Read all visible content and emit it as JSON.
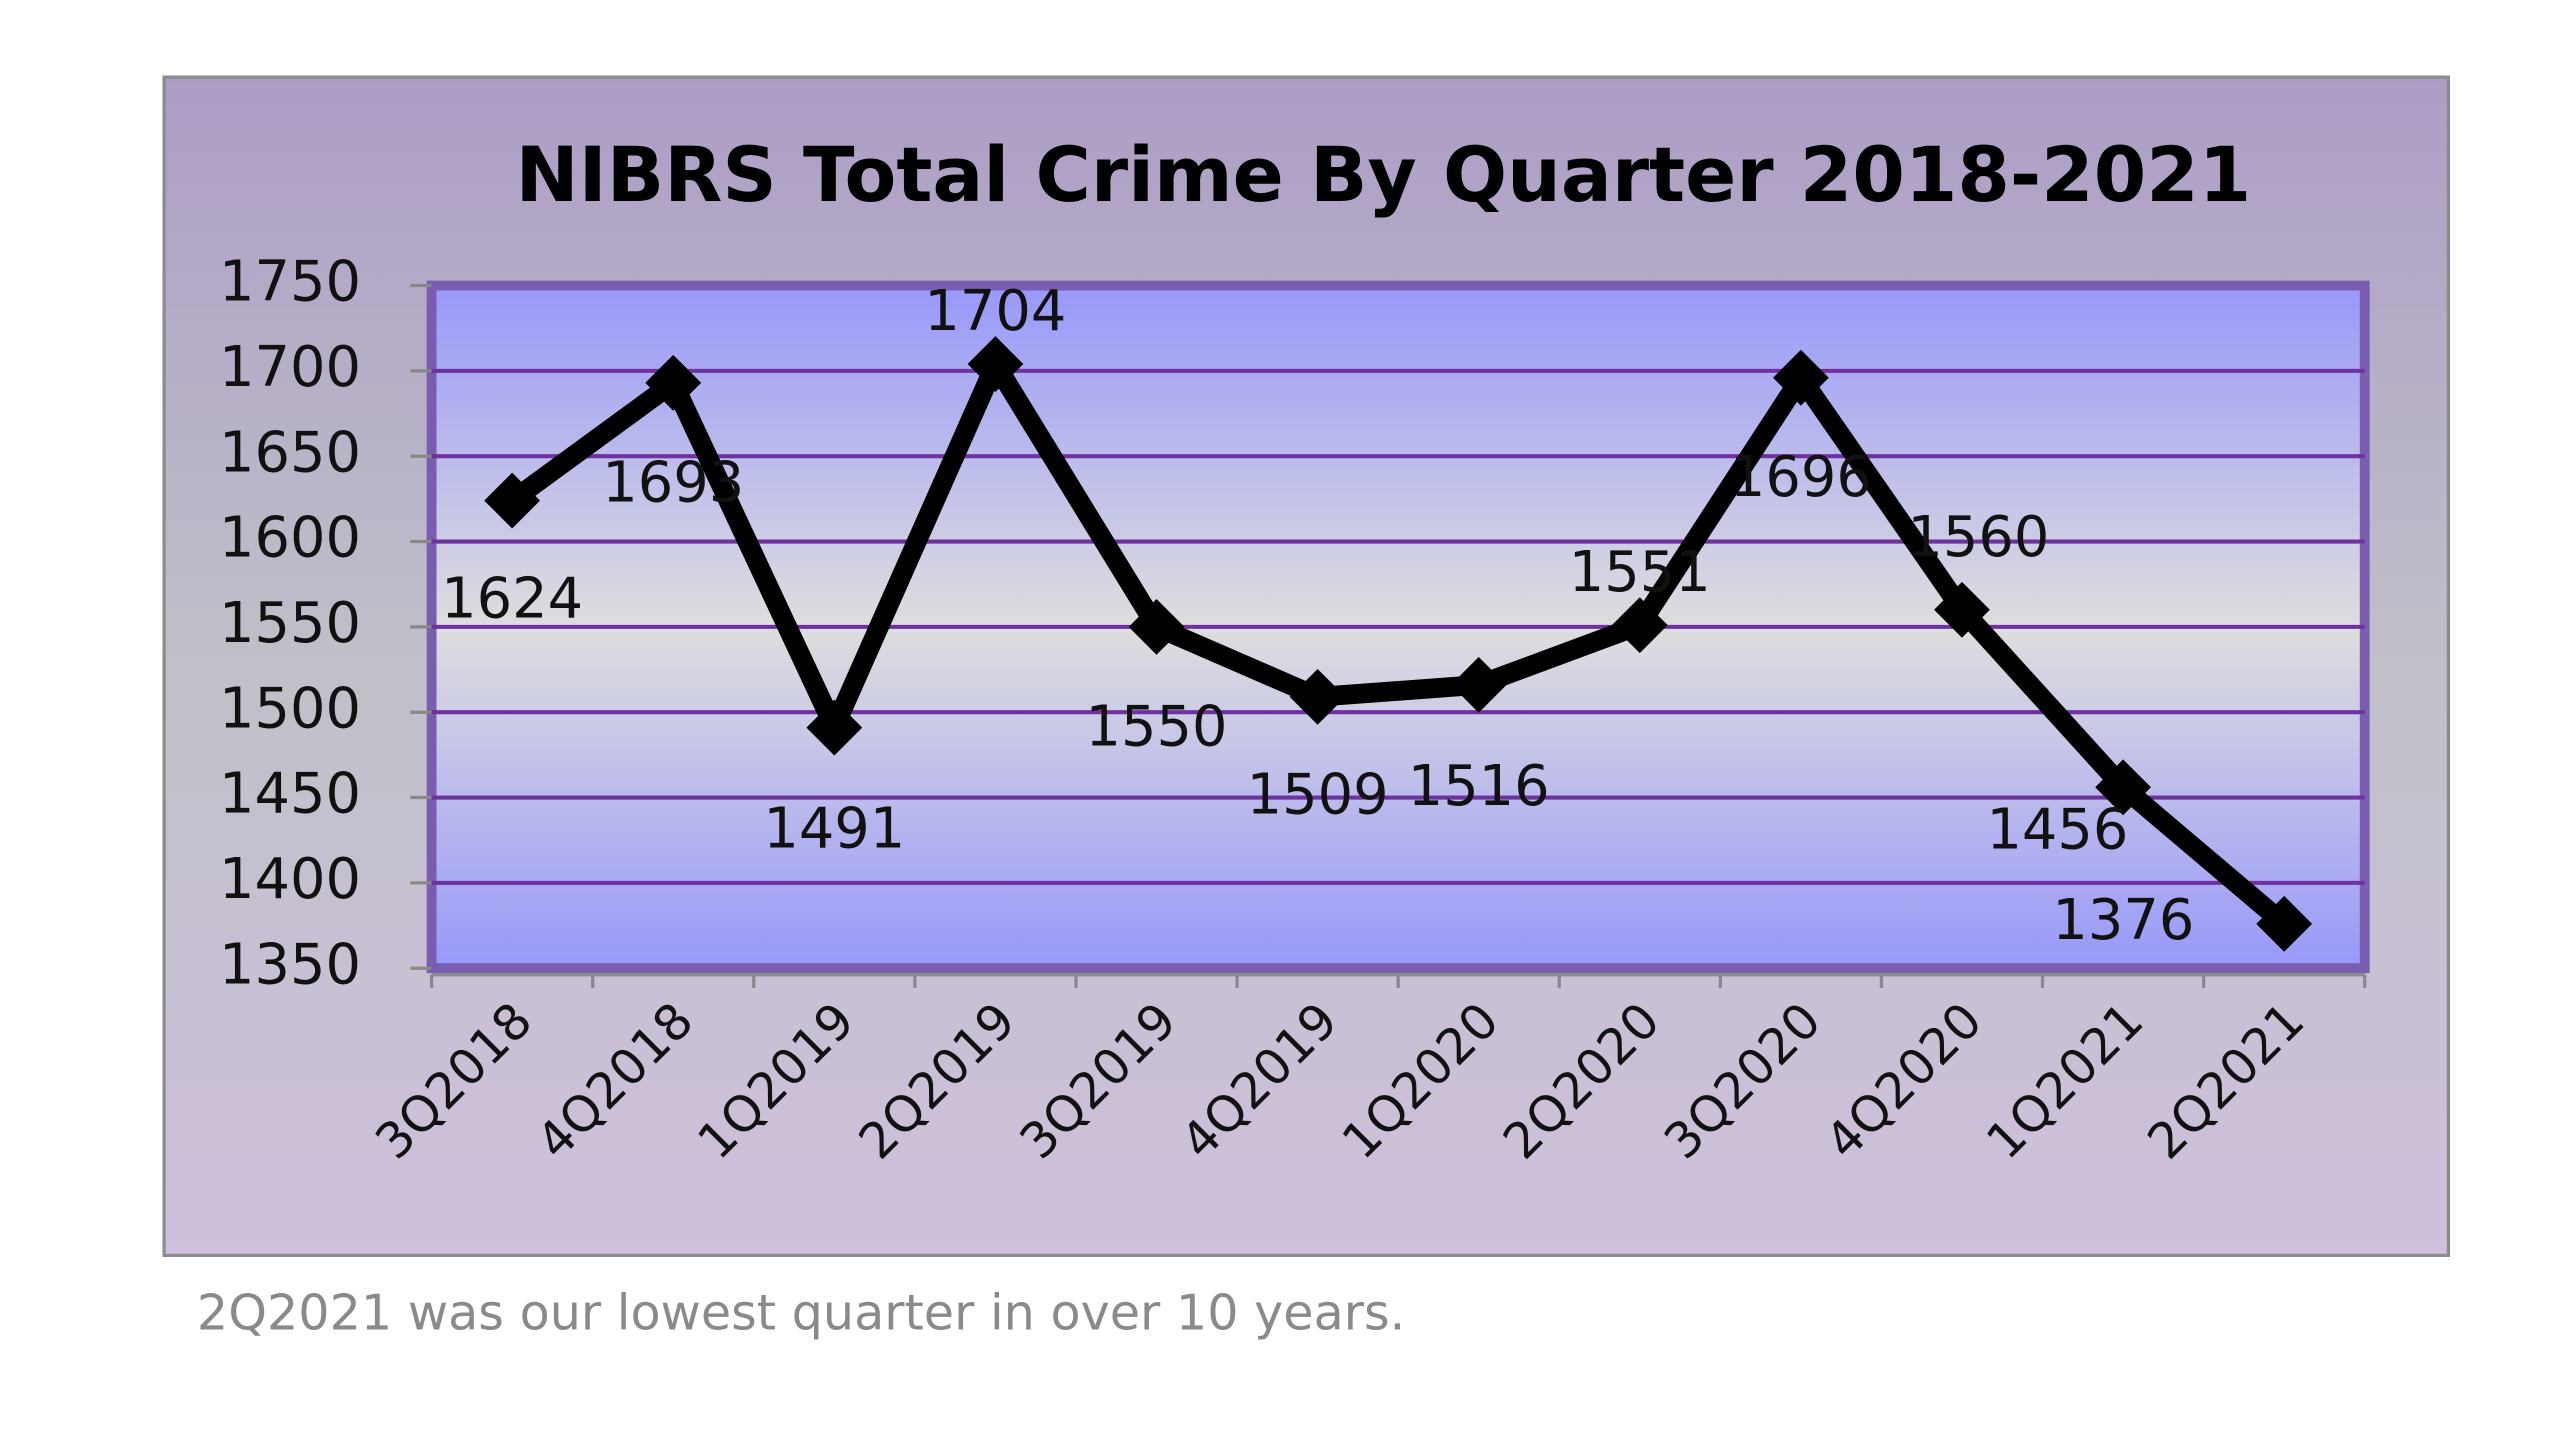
{
  "chart_data": {
    "type": "line",
    "title": "NIBRS Total Crime By Quarter 2018-2021",
    "categories": [
      "3Q2018",
      "4Q2018",
      "1Q2019",
      "2Q2019",
      "3Q2019",
      "4Q2019",
      "1Q2020",
      "2Q2020",
      "3Q2020",
      "4Q2020",
      "1Q2021",
      "2Q2021"
    ],
    "values": [
      1624,
      1693,
      1491,
      1704,
      1550,
      1509,
      1516,
      1551,
      1696,
      1560,
      1456,
      1376
    ],
    "color": "#000000",
    "ylim": [
      1350,
      1750
    ],
    "yticks": [
      1350,
      1400,
      1450,
      1500,
      1550,
      1600,
      1650,
      1700,
      1750
    ],
    "grid": true,
    "grid_color": "#7030a0",
    "caption": "2Q2021 was our lowest quarter in over 10 years."
  }
}
